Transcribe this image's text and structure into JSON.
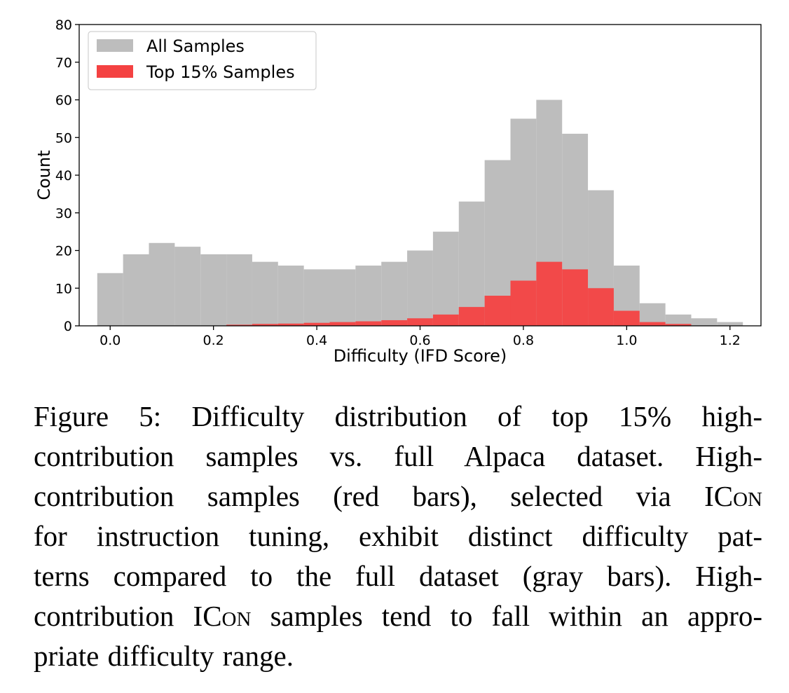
{
  "chart_data": {
    "type": "bar",
    "subtype": "overlaid-histogram",
    "xlabel": "Difficulty (IFD Score)",
    "ylabel": "Count",
    "xlim": [
      -0.06,
      1.26
    ],
    "ylim": [
      0,
      80
    ],
    "xticks": [
      0.0,
      0.2,
      0.4,
      0.6,
      0.8,
      1.0,
      1.2
    ],
    "xtick_labels": [
      "0.0",
      "0.2",
      "0.4",
      "0.6",
      "0.8",
      "1.0",
      "1.2"
    ],
    "yticks": [
      0,
      10,
      20,
      30,
      40,
      50,
      60,
      70,
      80
    ],
    "ytick_labels": [
      "0",
      "10",
      "20",
      "30",
      "40",
      "50",
      "60",
      "70",
      "80"
    ],
    "grid": false,
    "legend_position": "top-left",
    "series": [
      {
        "name": "All Samples",
        "color": "#bdbdbd",
        "x": [
          0.0,
          0.05,
          0.1,
          0.15,
          0.2,
          0.25,
          0.3,
          0.35,
          0.4,
          0.45,
          0.5,
          0.55,
          0.6,
          0.65,
          0.7,
          0.75,
          0.8,
          0.85,
          0.9,
          0.95,
          1.0,
          1.05,
          1.1,
          1.15,
          1.2
        ],
        "values": [
          14,
          19,
          22,
          21,
          19,
          19,
          17,
          16,
          15,
          15,
          16,
          17,
          20,
          25,
          33,
          44,
          55,
          60,
          51,
          36,
          16,
          6,
          3,
          2,
          1
        ]
      },
      {
        "name": "Top 15% Samples",
        "color": "#f44242",
        "x": [
          0.15,
          0.2,
          0.25,
          0.3,
          0.35,
          0.4,
          0.45,
          0.5,
          0.55,
          0.6,
          0.65,
          0.7,
          0.75,
          0.8,
          0.85,
          0.9,
          0.95,
          1.0,
          1.05,
          1.1,
          1.15
        ],
        "values": [
          0,
          0,
          0.3,
          0.5,
          0.6,
          0.8,
          1,
          1.2,
          1.5,
          2,
          3,
          5,
          8,
          12,
          17,
          15,
          10,
          4,
          1,
          0.5,
          0
        ]
      }
    ]
  },
  "caption": {
    "lines": [
      "Figure 5: Difficulty distribution of top 15% high-",
      "contribution samples vs. full Alpaca dataset. High-",
      "contribution samples (red bars), selected via ICON",
      "for instruction tuning, exhibit distinct difficulty pat-",
      "terns compared to the full dataset (gray bars). High-",
      "contribution ICON samples tend to fall within an appro-",
      "priate difficulty range."
    ]
  }
}
